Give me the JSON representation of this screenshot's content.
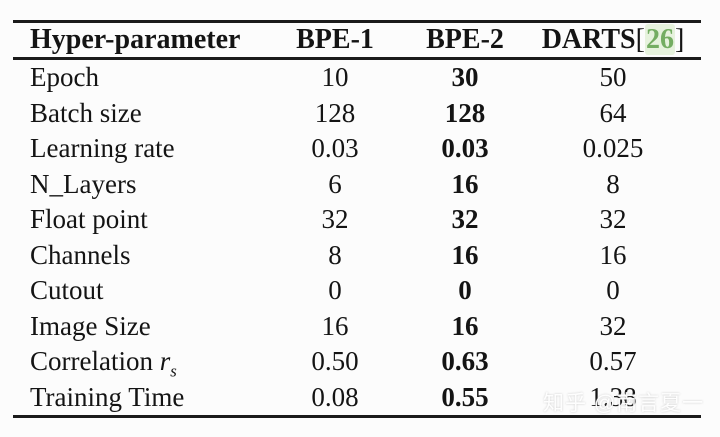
{
  "table": {
    "headers": [
      "Hyper-parameter",
      "BPE-1",
      "BPE-2"
    ],
    "darts_header": {
      "text": "DARTS",
      "bracket_open": "[",
      "cite": "26",
      "bracket_close": "]"
    },
    "rows": [
      {
        "label": "Epoch",
        "bpe1": "10",
        "bpe2": "30",
        "darts": "50"
      },
      {
        "label": "Batch size",
        "bpe1": "128",
        "bpe2": "128",
        "darts": "64"
      },
      {
        "label": "Learning rate",
        "bpe1": "0.03",
        "bpe2": "0.03",
        "darts": "0.025"
      },
      {
        "label": "N_Layers",
        "bpe1": "6",
        "bpe2": "16",
        "darts": "8"
      },
      {
        "label": "Float point",
        "bpe1": "32",
        "bpe2": "32",
        "darts": "32"
      },
      {
        "label": "Channels",
        "bpe1": "8",
        "bpe2": "16",
        "darts": "16"
      },
      {
        "label": "Cutout",
        "bpe1": "0",
        "bpe2": "0",
        "darts": "0"
      },
      {
        "label": "Image Size",
        "bpe1": "16",
        "bpe2": "16",
        "darts": "32"
      },
      {
        "label": "Correlation ",
        "label_math": "r",
        "label_sub": "s",
        "bpe1": "0.50",
        "bpe2": "0.63",
        "darts": "0.57"
      },
      {
        "label": "Training Time",
        "bpe1": "0.08",
        "bpe2": "0.55",
        "darts": "1.38"
      }
    ]
  },
  "watermark": {
    "text": "知乎 @南言夏一"
  },
  "colors": {
    "citation_green": "#74ad62",
    "citation_halo": "#e6f2dd",
    "text": "#141414",
    "rule": "#1b1b1b",
    "background": "#fcfcfc"
  },
  "chart_data": {
    "type": "table",
    "columns": [
      "Hyper-parameter",
      "BPE-1",
      "BPE-2",
      "DARTS[26]"
    ],
    "rows": [
      [
        "Epoch",
        10,
        30,
        50
      ],
      [
        "Batch size",
        128,
        128,
        64
      ],
      [
        "Learning rate",
        0.03,
        0.03,
        0.025
      ],
      [
        "N_Layers",
        6,
        16,
        8
      ],
      [
        "Float point",
        32,
        32,
        32
      ],
      [
        "Channels",
        8,
        16,
        16
      ],
      [
        "Cutout",
        0,
        0,
        0
      ],
      [
        "Image Size",
        16,
        16,
        32
      ],
      [
        "Correlation r_s",
        0.5,
        0.63,
        0.57
      ],
      [
        "Training Time",
        0.08,
        0.55,
        1.38
      ]
    ],
    "notes": "BPE-2 column rendered entirely in bold; header row bold; '26' citation shown in green"
  }
}
